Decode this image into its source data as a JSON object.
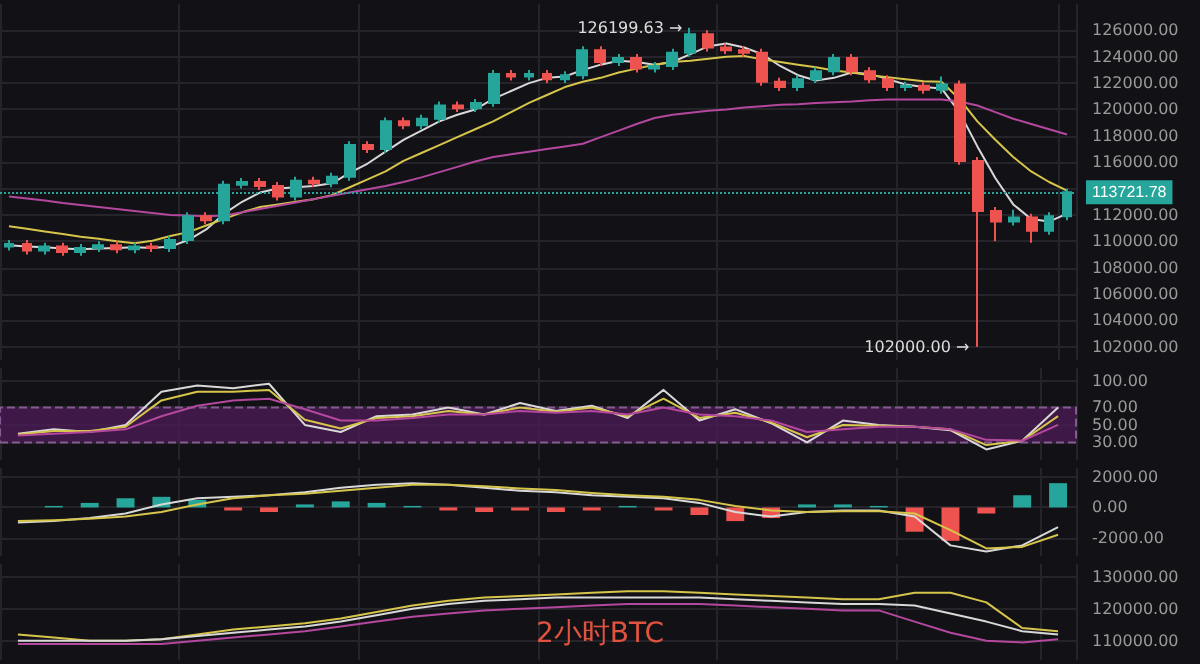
{
  "chart_data": [
    {
      "type": "candlestick",
      "categories": [
        null,
        null,
        null,
        null,
        null,
        null,
        null,
        null,
        null,
        null,
        null,
        null,
        null,
        null,
        null,
        null,
        null,
        null,
        null,
        null,
        null,
        null,
        null,
        null,
        null,
        null,
        null,
        null,
        null,
        null,
        null,
        null,
        null,
        null,
        null,
        null,
        null,
        null,
        null,
        null,
        null,
        null,
        null,
        null,
        null,
        null,
        null,
        null,
        null,
        null,
        null,
        null,
        null,
        null,
        null,
        null,
        null,
        null,
        null,
        null
      ],
      "ohlc": [
        [
          109600,
          110100,
          109300,
          109800
        ],
        [
          109800,
          110100,
          109000,
          109300
        ],
        [
          109300,
          109900,
          109000,
          109600
        ],
        [
          109600,
          109900,
          108900,
          109200
        ],
        [
          109200,
          109800,
          108900,
          109500
        ],
        [
          109500,
          110000,
          109200,
          109700
        ],
        [
          109700,
          110000,
          109100,
          109400
        ],
        [
          109400,
          109900,
          109100,
          109600
        ],
        [
          109600,
          109900,
          109200,
          109500
        ],
        [
          109500,
          110400,
          109200,
          110100
        ],
        [
          110100,
          112200,
          109800,
          111900
        ],
        [
          111900,
          112200,
          111300,
          111600
        ],
        [
          111600,
          114600,
          111300,
          114300
        ],
        [
          114300,
          114800,
          114000,
          114500
        ],
        [
          114500,
          114800,
          113900,
          114200
        ],
        [
          114200,
          114500,
          113100,
          113400
        ],
        [
          113400,
          114900,
          113100,
          114600
        ],
        [
          114600,
          114900,
          114100,
          114400
        ],
        [
          114400,
          115200,
          114100,
          114900
        ],
        [
          114900,
          117600,
          114600,
          117300
        ],
        [
          117300,
          117600,
          116700,
          117000
        ],
        [
          117000,
          119400,
          116700,
          119100
        ],
        [
          119100,
          119400,
          118500,
          118800
        ],
        [
          118800,
          119600,
          118500,
          119300
        ],
        [
          119300,
          120600,
          119000,
          120300
        ],
        [
          120300,
          120600,
          119800,
          120100
        ],
        [
          120100,
          120800,
          119800,
          120500
        ],
        [
          120500,
          123000,
          120200,
          122700
        ],
        [
          122700,
          123000,
          122200,
          122500
        ],
        [
          122500,
          123000,
          122200,
          122700
        ],
        [
          122700,
          123000,
          122000,
          122300
        ],
        [
          122300,
          122900,
          122000,
          122600
        ],
        [
          122600,
          124800,
          122300,
          124500
        ],
        [
          124500,
          124800,
          123300,
          123600
        ],
        [
          123600,
          124200,
          123300,
          123900
        ],
        [
          123900,
          124200,
          122800,
          123100
        ],
        [
          123100,
          123600,
          122800,
          123300
        ],
        [
          123300,
          124600,
          123000,
          124300
        ],
        [
          124300,
          126199.63,
          124000,
          125700
        ],
        [
          125700,
          126000,
          124400,
          124700
        ],
        [
          124700,
          125000,
          124200,
          124500
        ],
        [
          124500,
          124800,
          124000,
          124300
        ],
        [
          124300,
          124600,
          121800,
          122100
        ],
        [
          122100,
          122400,
          121400,
          121700
        ],
        [
          121700,
          122600,
          121400,
          122300
        ],
        [
          122300,
          123200,
          122000,
          122900
        ],
        [
          122900,
          124200,
          122600,
          123900
        ],
        [
          123900,
          124200,
          122600,
          122900
        ],
        [
          122900,
          123200,
          122000,
          122300
        ],
        [
          122300,
          122600,
          121400,
          121700
        ],
        [
          121700,
          122100,
          121400,
          121800
        ],
        [
          121800,
          122100,
          121200,
          121500
        ],
        [
          121500,
          122500,
          121200,
          121900
        ],
        [
          121900,
          122200,
          115800,
          116100
        ],
        [
          116100,
          116400,
          102000,
          112300
        ],
        [
          112300,
          112600,
          110000,
          111500
        ],
        [
          111500,
          112400,
          111200,
          111800
        ],
        [
          111800,
          112100,
          109900,
          110800
        ],
        [
          110800,
          112200,
          110500,
          111900
        ],
        [
          111900,
          114000,
          111600,
          113721.78
        ]
      ],
      "series": [
        {
          "type": "line",
          "color": "#d8d8d8",
          "values": [
            109700,
            109600,
            109550,
            109450,
            109400,
            109450,
            109500,
            109550,
            109500,
            109600,
            110100,
            110900,
            112100,
            113000,
            113700,
            114000,
            114100,
            114200,
            114400,
            115200,
            115900,
            116800,
            117700,
            118400,
            119100,
            119600,
            120000,
            120800,
            121400,
            122000,
            122400,
            122500,
            123000,
            123400,
            123700,
            123600,
            123400,
            123600,
            124200,
            124800,
            125000,
            124700,
            124200,
            123300,
            122600,
            122200,
            122400,
            122800,
            122700,
            122300,
            121900,
            121700,
            121600,
            119800,
            117200,
            114800,
            112800,
            111700,
            111500,
            112100
          ]
        },
        {
          "type": "line",
          "color": "#d6c54a",
          "values": [
            111150,
            110950,
            110750,
            110550,
            110350,
            110200,
            110000,
            109850,
            110050,
            110400,
            110700,
            111200,
            111700,
            112200,
            112600,
            112800,
            113000,
            113200,
            113500,
            114100,
            114700,
            115300,
            116100,
            116700,
            117300,
            117900,
            118500,
            119100,
            119800,
            120500,
            121100,
            121700,
            122100,
            122400,
            122800,
            123100,
            123400,
            123600,
            123700,
            123850,
            124000,
            124050,
            123800,
            123600,
            123400,
            123200,
            122950,
            122800,
            122600,
            122450,
            122300,
            122150,
            122100,
            120800,
            119100,
            117700,
            116400,
            115300,
            114500,
            113850
          ]
        },
        {
          "type": "line",
          "color": "#b4479e",
          "values": [
            113400,
            113250,
            113100,
            112900,
            112750,
            112600,
            112450,
            112300,
            112150,
            112000,
            111950,
            111900,
            111950,
            112200,
            112450,
            112700,
            112950,
            113200,
            113450,
            113700,
            113950,
            114200,
            114500,
            114850,
            115250,
            115650,
            116050,
            116400,
            116600,
            116800,
            117000,
            117200,
            117400,
            117900,
            118400,
            118900,
            119350,
            119600,
            119750,
            119900,
            120000,
            120150,
            120250,
            120350,
            120400,
            120500,
            120550,
            120600,
            120700,
            120750,
            120750,
            120750,
            120750,
            120600,
            120300,
            119800,
            119300,
            118900,
            118500,
            118100
          ]
        }
      ],
      "ylim": [
        101000,
        128000
      ],
      "yticks": [
        {
          "value": 102000,
          "label": "102000.00"
        },
        {
          "value": 104000,
          "label": "104000.00"
        },
        {
          "value": 106000,
          "label": "106000.00"
        },
        {
          "value": 108000,
          "label": "108000.00"
        },
        {
          "value": 110000,
          "label": "110000.00"
        },
        {
          "value": 112000,
          "label": "112000.00"
        },
        {
          "value": 114000,
          "label": null
        },
        {
          "value": 116000,
          "label": "116000.00"
        },
        {
          "value": 118000,
          "label": "118000.00"
        },
        {
          "value": 120000,
          "label": "120000.00"
        },
        {
          "value": 122000,
          "label": "122000.00"
        },
        {
          "value": 124000,
          "label": "124000.00"
        },
        {
          "value": 126000,
          "label": "126000.00"
        }
      ],
      "annotations": [
        "126199.63 →",
        "102000.00 →"
      ],
      "ref_lines": [
        {
          "axis": "y",
          "value": 113721.78,
          "label": "113721.78",
          "color": "#26a69a"
        }
      ],
      "grid": true,
      "tick_labels": "y",
      "marker": "none"
    },
    {
      "type": "line",
      "categories": [
        null,
        null,
        null,
        null,
        null,
        null,
        null,
        null,
        null,
        null,
        null,
        null,
        null,
        null,
        null,
        null,
        null,
        null,
        null,
        null,
        null,
        null,
        null,
        null,
        null,
        null,
        null,
        null,
        null,
        null
      ],
      "series": [
        {
          "color": "#d8d8d8",
          "values": [
            40,
            45,
            42,
            50,
            88,
            95,
            92,
            97,
            50,
            42,
            60,
            62,
            70,
            62,
            75,
            66,
            72,
            58,
            90,
            55,
            68,
            52,
            30,
            55,
            50,
            48,
            44,
            22,
            32,
            70
          ]
        },
        {
          "color": "#d6c54a",
          "values": [
            39,
            43,
            43,
            48,
            78,
            88,
            88,
            90,
            56,
            46,
            58,
            60,
            66,
            62,
            70,
            65,
            70,
            60,
            80,
            58,
            64,
            53,
            36,
            50,
            49,
            48,
            45,
            27,
            32,
            60
          ]
        },
        {
          "color": "#b4479e",
          "values": [
            38,
            40,
            42,
            45,
            60,
            72,
            78,
            80,
            68,
            55,
            55,
            58,
            62,
            62,
            66,
            64,
            66,
            62,
            70,
            62,
            60,
            55,
            42,
            45,
            48,
            48,
            45,
            33,
            32,
            50
          ]
        }
      ],
      "ylim": [
        10,
        115
      ],
      "yticks": [
        {
          "value": 30,
          "label": "30.00"
        },
        {
          "value": 50,
          "label": "50.00"
        },
        {
          "value": 70,
          "label": "70.00"
        },
        {
          "value": 100,
          "label": "100.00"
        }
      ],
      "bands": [
        {
          "axis": "y",
          "from": 30,
          "to": 70,
          "color": "#4a1a52"
        }
      ],
      "grid": true,
      "tick_labels": "y",
      "marker": "none"
    },
    {
      "type": "line",
      "categories": [
        null,
        null,
        null,
        null,
        null,
        null,
        null,
        null,
        null,
        null,
        null,
        null,
        null,
        null,
        null,
        null,
        null,
        null,
        null,
        null,
        null,
        null,
        null,
        null,
        null,
        null,
        null,
        null,
        null,
        null
      ],
      "series": [
        {
          "type": "bar",
          "colors": [
            "#26a69a",
            "#26a69a",
            "#26a69a",
            "#26a69a",
            "#26a69a",
            "#26a69a",
            "#ef5350",
            "#ef5350",
            "#26a69a",
            "#26a69a",
            "#26a69a",
            "#26a69a",
            "#ef5350",
            "#ef5350",
            "#ef5350",
            "#ef5350",
            "#ef5350",
            "#26a69a",
            "#ef5350",
            "#ef5350",
            "#ef5350",
            "#ef5350",
            "#26a69a",
            "#26a69a",
            "#26a69a",
            "#ef5350",
            "#ef5350",
            "#ef5350",
            "#26a69a",
            "#26a69a"
          ],
          "values": [
            0,
            100,
            300,
            600,
            700,
            500,
            -200,
            -300,
            200,
            400,
            300,
            100,
            -200,
            -300,
            -200,
            -300,
            -200,
            100,
            -200,
            -500,
            -900,
            -700,
            200,
            200,
            100,
            -1600,
            -2200,
            -400,
            800,
            1600
          ]
        },
        {
          "color": "#d8d8d8",
          "values": [
            -1000,
            -900,
            -700,
            -400,
            200,
            600,
            700,
            800,
            1000,
            1300,
            1500,
            1600,
            1500,
            1300,
            1100,
            1000,
            800,
            700,
            600,
            300,
            -300,
            -600,
            -300,
            -200,
            -200,
            -600,
            -2500,
            -2900,
            -2500,
            -1300
          ]
        },
        {
          "color": "#d6c54a",
          "values": [
            -900,
            -850,
            -750,
            -600,
            -300,
            200,
            600,
            800,
            900,
            1100,
            1300,
            1500,
            1500,
            1400,
            1250,
            1150,
            950,
            800,
            700,
            500,
            100,
            -200,
            -300,
            -250,
            -250,
            -400,
            -1500,
            -2700,
            -2600,
            -1800
          ]
        }
      ],
      "ylim": [
        -3200,
        2600
      ],
      "yticks": [
        {
          "value": -2000,
          "label": "-2000.00"
        },
        {
          "value": 0,
          "label": "0.00"
        },
        {
          "value": 2000,
          "label": "2000.00"
        }
      ],
      "grid": true,
      "tick_labels": "y",
      "marker": "none"
    },
    {
      "type": "line",
      "categories": [
        null,
        null,
        null,
        null,
        null,
        null,
        null,
        null,
        null,
        null,
        null,
        null,
        null,
        null,
        null,
        null,
        null,
        null,
        null,
        null,
        null,
        null,
        null,
        null,
        null,
        null,
        null,
        null,
        null,
        null
      ],
      "series": [
        {
          "color": "#d6c54a",
          "values": [
            112000,
            111000,
            110000,
            110000,
            110500,
            112000,
            113500,
            114500,
            115500,
            117000,
            119000,
            121000,
            122500,
            123500,
            124000,
            124500,
            125000,
            125500,
            125500,
            125000,
            124500,
            124000,
            123500,
            123000,
            123000,
            125000,
            125000,
            122000,
            114000,
            113000
          ]
        },
        {
          "color": "#d8d8d8",
          "values": [
            110000,
            110000,
            110000,
            110000,
            110500,
            111500,
            112500,
            113500,
            114500,
            116000,
            118000,
            120000,
            121500,
            122500,
            123000,
            123500,
            123500,
            123500,
            123500,
            123500,
            123000,
            122500,
            122000,
            121500,
            121500,
            121000,
            118500,
            116000,
            113000,
            112000
          ]
        },
        {
          "color": "#b4479e",
          "values": [
            109000,
            109000,
            109000,
            109000,
            109000,
            110000,
            111000,
            112000,
            113000,
            114500,
            116000,
            117500,
            118500,
            119500,
            120000,
            120500,
            121000,
            121500,
            121500,
            121500,
            121000,
            120500,
            120000,
            119500,
            119500,
            116000,
            112500,
            110000,
            109500,
            110500
          ]
        }
      ],
      "ylim": [
        104000,
        134000
      ],
      "yticks": [
        {
          "value": 110000,
          "label": "110000.00"
        },
        {
          "value": 120000,
          "label": "120000.00"
        },
        {
          "value": 130000,
          "label": "130000.00"
        }
      ],
      "annotations": [
        "2小时BTC"
      ],
      "grid": true,
      "tick_labels": "y",
      "marker": "none"
    }
  ]
}
